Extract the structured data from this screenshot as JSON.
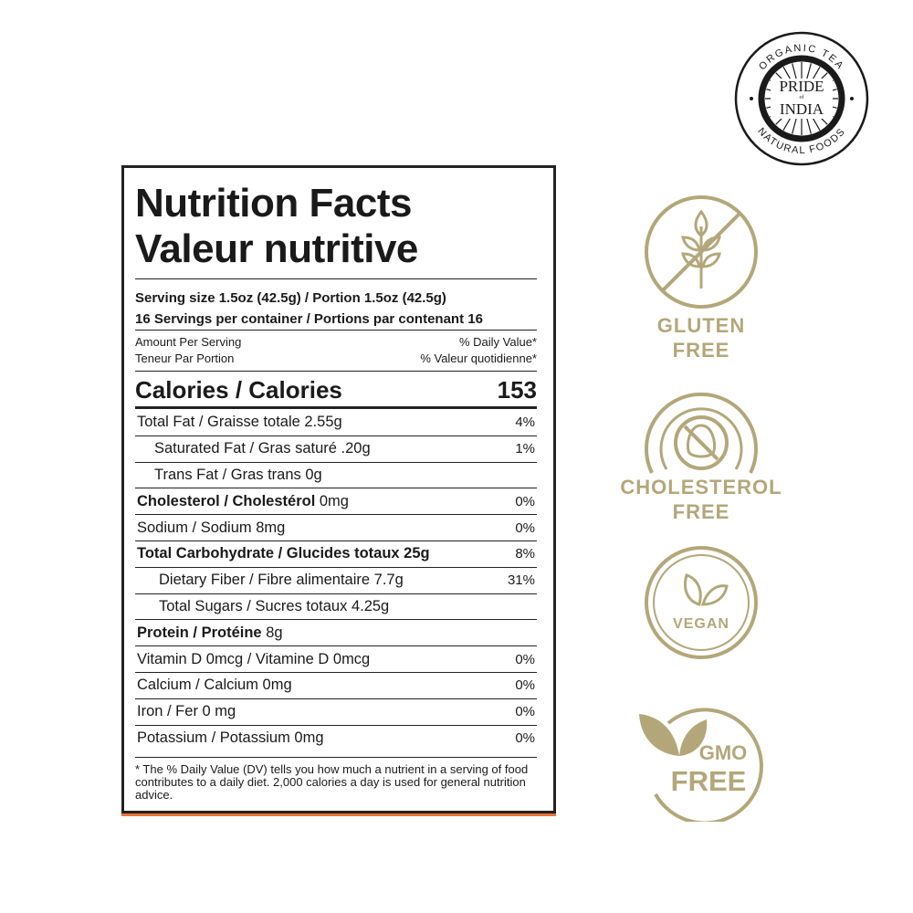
{
  "label": {
    "title_en": "Nutrition Facts",
    "title_fr": "Valeur nutritive",
    "serving_size": "Serving size 1.5oz (42.5g) / Portion 1.5oz (42.5g)",
    "servings_per_container": "16 Servings per container / Portions par contenant 16",
    "amount_per_serving": "Amount Per Serving",
    "teneur_par_portion": "Teneur Par Portion",
    "daily_value": "% Daily Value*",
    "valeur_quotidienne": "% Valeur quotidienne*",
    "calories_label": "Calories / Calories",
    "calories_value": "153",
    "rows": [
      {
        "bold": "",
        "text": "Total Fat / Graisse totale 2.55g",
        "pct": "4%",
        "indent": 0
      },
      {
        "bold": "",
        "text": "Saturated Fat / Gras saturé .20g",
        "pct": "1%",
        "indent": 1
      },
      {
        "bold": "",
        "text": "Trans Fat / Gras trans 0g",
        "pct": "",
        "indent": 1
      },
      {
        "bold": "Cholesterol / Cholestérol",
        "text": " 0mg",
        "pct": "0%",
        "indent": 0
      },
      {
        "bold": "",
        "text": "Sodium / Sodium 8mg",
        "pct": "0%",
        "indent": 0
      },
      {
        "bold": "Total Carbohydrate / Glucides totaux 25g",
        "text": "",
        "pct": "8%",
        "indent": 0
      },
      {
        "bold": "",
        "text": "Dietary Fiber / Fibre alimentaire 7.7g",
        "pct": "31%",
        "indent": 2
      },
      {
        "bold": "",
        "text": "Total Sugars / Sucres totaux 4.25g",
        "pct": "",
        "indent": 2
      },
      {
        "bold": "Protein / Protéine",
        "text": " 8g",
        "pct": "",
        "indent": 0
      },
      {
        "bold": "",
        "text": "Vitamin D 0mcg / Vitamine D 0mcg",
        "pct": "0%",
        "indent": 0
      },
      {
        "bold": "",
        "text": "Calcium / Calcium 0mg",
        "pct": "0%",
        "indent": 0
      },
      {
        "bold": "",
        "text": "Iron / Fer 0 mg",
        "pct": "0%",
        "indent": 0
      },
      {
        "bold": "",
        "text": "Potassium / Potassium 0mg",
        "pct": "0%",
        "indent": 0
      }
    ],
    "footnote": "* The % Daily Value (DV) tells you how much a nutrient in a serving of food contributes to a daily diet. 2,000 calories a day is used for general nutrition advice."
  },
  "logo": {
    "top_text": "ORGANIC TEA",
    "bottom_text": "NATURAL FOODS",
    "line1": "PRIDE",
    "of": "of",
    "line2": "INDIA"
  },
  "badges": {
    "gluten": {
      "line1": "GLUTEN",
      "line2": "FREE",
      "icon": "wheat-crossed-icon"
    },
    "cholesterol": {
      "line1": "CHOLESTEROL",
      "line2": "FREE",
      "icon": "egg-crossed-icon"
    },
    "vegan": {
      "text": "VEGAN",
      "icon": "leaves-icon"
    },
    "gmo": {
      "line1": "GMO",
      "line2": "FREE",
      "icon": "leaves-icon"
    }
  },
  "colors": {
    "gold": "#b3a77a",
    "accent_orange": "#e8743a",
    "ink": "#1a1a1a"
  }
}
